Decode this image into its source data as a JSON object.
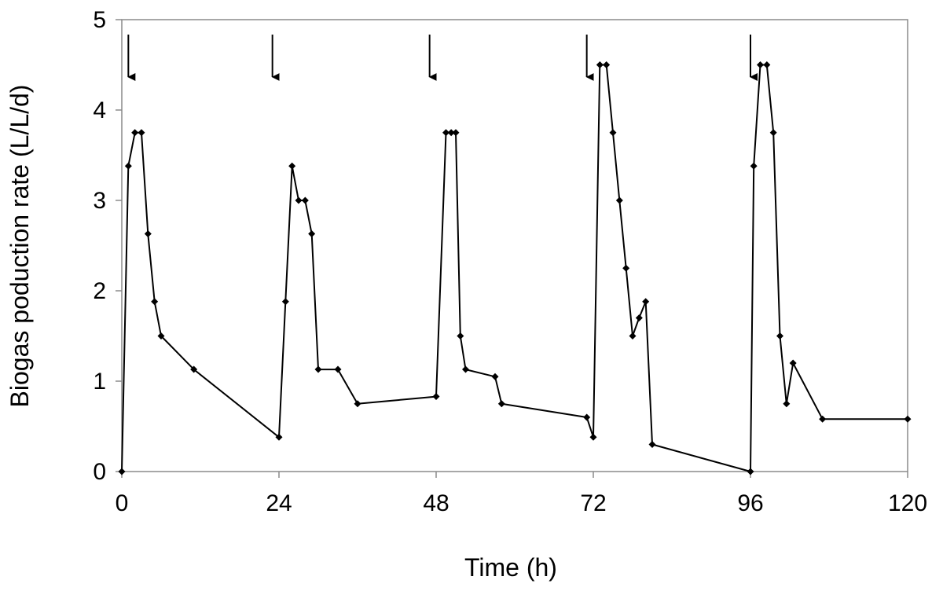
{
  "chart_data": {
    "type": "line",
    "title": "",
    "xlabel": "Time (h)",
    "ylabel": "Biogas  poduction rate (L/L/d)",
    "xlim": [
      0,
      120
    ],
    "ylim": [
      0,
      5
    ],
    "xticks": [
      0,
      24,
      48,
      72,
      96,
      120
    ],
    "yticks": [
      0,
      1,
      2,
      3,
      4,
      5
    ],
    "grid": false,
    "legend": "none",
    "series": [
      {
        "name": "Biogas production rate",
        "marker": "diamond",
        "color": "#000000",
        "x": [
          0,
          1,
          2,
          3,
          4,
          5,
          6,
          11,
          24,
          25,
          26,
          27,
          28,
          29,
          30,
          33,
          36,
          48,
          49.5,
          50.3,
          51,
          51.7,
          52.5,
          57,
          58,
          71,
          72,
          73,
          74,
          75,
          76,
          77,
          78,
          79,
          80,
          81,
          96,
          96.5,
          97.5,
          98.5,
          99.5,
          100.5,
          101.5,
          102.5,
          107,
          120
        ],
        "y": [
          0,
          3.38,
          3.75,
          3.75,
          2.63,
          1.88,
          1.5,
          1.13,
          0.38,
          1.88,
          3.38,
          3.0,
          3.0,
          2.63,
          1.13,
          1.13,
          0.75,
          0.83,
          3.75,
          3.75,
          3.75,
          1.5,
          1.13,
          1.05,
          0.75,
          0.6,
          0.38,
          4.5,
          4.5,
          3.75,
          3.0,
          2.25,
          1.5,
          1.7,
          1.88,
          0.3,
          0.0,
          3.38,
          4.5,
          4.5,
          3.75,
          1.5,
          0.75,
          1.2,
          0.58,
          0.58
        ]
      }
    ],
    "annotations": {
      "type": "feeding-arrows",
      "x": [
        1,
        23,
        47,
        71,
        96
      ]
    }
  }
}
